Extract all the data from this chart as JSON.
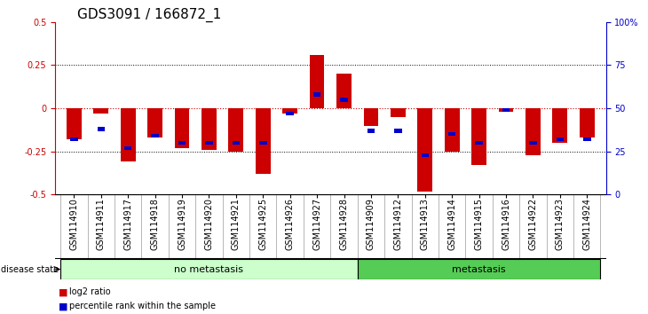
{
  "title": "GDS3091 / 166872_1",
  "samples": [
    "GSM114910",
    "GSM114911",
    "GSM114917",
    "GSM114918",
    "GSM114919",
    "GSM114920",
    "GSM114921",
    "GSM114925",
    "GSM114926",
    "GSM114927",
    "GSM114928",
    "GSM114909",
    "GSM114912",
    "GSM114913",
    "GSM114914",
    "GSM114915",
    "GSM114916",
    "GSM114922",
    "GSM114923",
    "GSM114924"
  ],
  "log2_ratio": [
    -0.18,
    -0.03,
    -0.31,
    -0.17,
    -0.23,
    -0.24,
    -0.25,
    -0.38,
    -0.03,
    0.31,
    0.2,
    -0.1,
    -0.05,
    -0.48,
    -0.25,
    -0.33,
    -0.02,
    -0.27,
    -0.2,
    -0.17
  ],
  "percentile": [
    0.32,
    0.38,
    0.27,
    0.34,
    0.3,
    0.3,
    0.3,
    0.3,
    0.47,
    0.58,
    0.55,
    0.37,
    0.37,
    0.23,
    0.35,
    0.3,
    0.49,
    0.3,
    0.32,
    0.32
  ],
  "no_metastasis_count": 11,
  "metastasis_count": 9,
  "group_labels": [
    "no metastasis",
    "metastasis"
  ],
  "no_metastasis_color": "#ccffcc",
  "metastasis_color": "#55cc55",
  "bar_bg_color": "#cccccc",
  "red_color": "#cc0000",
  "blue_color": "#0000cc",
  "ylim_left": [
    -0.5,
    0.5
  ],
  "yticks_left": [
    -0.5,
    -0.25,
    0,
    0.25,
    0.5
  ],
  "ytick_labels_left": [
    "-0.5",
    "-0.25",
    "0",
    "0.25",
    "0.5"
  ],
  "yticks_right": [
    0,
    25,
    50,
    75,
    100
  ],
  "ytick_labels_right": [
    "0",
    "25",
    "50",
    "75",
    "100%"
  ],
  "dotted_lines": [
    -0.25,
    0.25
  ],
  "title_fontsize": 11,
  "tick_fontsize": 7,
  "annot_fontsize": 8,
  "legend_fontsize": 7,
  "bar_width": 0.55,
  "blue_bar_width": 0.28,
  "blue_bar_height": 0.022
}
